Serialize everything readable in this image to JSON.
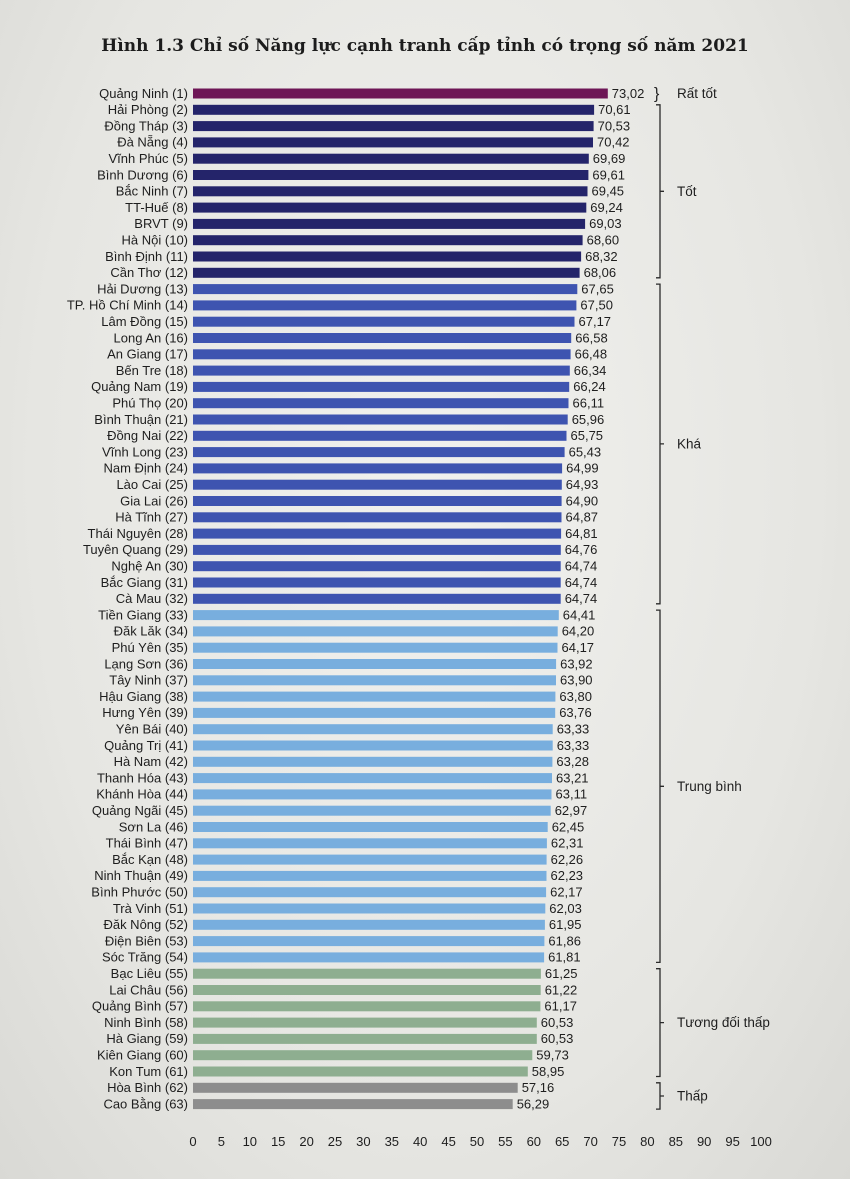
{
  "chart_data": {
    "type": "bar",
    "orientation": "horizontal",
    "title": "Hình 1.3 Chỉ số Năng lực cạnh tranh cấp tỉnh có trọng số năm 2021",
    "xlabel": "",
    "ylabel": "",
    "xlim": [
      0,
      100
    ],
    "x_ticks": [
      "0",
      "5",
      "10",
      "15",
      "20",
      "25",
      "30",
      "35",
      "40",
      "45",
      "50",
      "55",
      "60",
      "65",
      "70",
      "75",
      "80",
      "85",
      "90",
      "95",
      "100"
    ],
    "grid": false,
    "categories": [
      "Quảng Ninh (1)",
      "Hải Phòng (2)",
      "Đồng Tháp (3)",
      "Đà Nẵng (4)",
      "Vĩnh Phúc (5)",
      "Bình Dương (6)",
      "Bắc Ninh (7)",
      "TT-Huế (8)",
      "BRVT (9)",
      "Hà Nội (10)",
      "Bình Định (11)",
      "Cần Thơ (12)",
      "Hải Dương (13)",
      "TP. Hồ Chí Minh (14)",
      "Lâm Đồng (15)",
      "Long An (16)",
      "An Giang (17)",
      "Bến Tre (18)",
      "Quảng Nam (19)",
      "Phú Thọ (20)",
      "Bình Thuận (21)",
      "Đồng Nai (22)",
      "Vĩnh Long (23)",
      "Nam Định (24)",
      "Lào Cai (25)",
      "Gia Lai (26)",
      "Hà Tĩnh (27)",
      "Thái Nguyên (28)",
      "Tuyên Quang (29)",
      "Nghệ An (30)",
      "Bắc Giang (31)",
      "Cà Mau (32)",
      "Tiền Giang (33)",
      "Đăk Lăk (34)",
      "Phú Yên (35)",
      "Lạng Sơn (36)",
      "Tây Ninh (37)",
      "Hậu Giang (38)",
      "Hưng Yên (39)",
      "Yên Bái (40)",
      "Quảng Trị (41)",
      "Hà Nam (42)",
      "Thanh Hóa (43)",
      "Khánh Hòa (44)",
      "Quảng Ngãi (45)",
      "Sơn La (46)",
      "Thái Bình (47)",
      "Bắc Kạn (48)",
      "Ninh Thuận (49)",
      "Bình Phước (50)",
      "Trà Vinh (51)",
      "Đăk Nông (52)",
      "Điện Biên (53)",
      "Sóc Trăng (54)",
      "Bạc Liêu (55)",
      "Lai Châu (56)",
      "Quảng Bình (57)",
      "Ninh Bình (58)",
      "Hà Giang (59)",
      "Kiên Giang (60)",
      "Kon Tum (61)",
      "Hòa Bình (62)",
      "Cao Bằng (63)"
    ],
    "values": [
      73.02,
      70.61,
      70.53,
      70.42,
      69.69,
      69.61,
      69.45,
      69.24,
      69.03,
      68.6,
      68.32,
      68.06,
      67.65,
      67.5,
      67.17,
      66.58,
      66.48,
      66.34,
      66.24,
      66.11,
      65.96,
      65.75,
      65.43,
      64.99,
      64.93,
      64.9,
      64.87,
      64.81,
      64.76,
      64.74,
      64.74,
      64.74,
      64.41,
      64.2,
      64.17,
      63.92,
      63.9,
      63.8,
      63.76,
      63.33,
      63.33,
      63.28,
      63.21,
      63.11,
      62.97,
      62.45,
      62.31,
      62.26,
      62.23,
      62.17,
      62.03,
      61.95,
      61.86,
      61.81,
      61.25,
      61.22,
      61.17,
      60.53,
      60.53,
      59.73,
      58.95,
      57.16,
      56.29
    ],
    "value_labels": [
      "73,02",
      "70,61",
      "70,53",
      "70,42",
      "69,69",
      "69,61",
      "69,45",
      "69,24",
      "69,03",
      "68,60",
      "68,32",
      "68,06",
      "67,65",
      "67,50",
      "67,17",
      "66,58",
      "66,48",
      "66,34",
      "66,24",
      "66,11",
      "65,96",
      "65,75",
      "65,43",
      "64,99",
      "64,93",
      "64,90",
      "64,87",
      "64,81",
      "64,76",
      "64,74",
      "64,74",
      "64,74",
      "64,41",
      "64,20",
      "64,17",
      "63,92",
      "63,90",
      "63,80",
      "63,76",
      "63,33",
      "63,33",
      "63,28",
      "63,21",
      "63,11",
      "62,97",
      "62,45",
      "62,31",
      "62,26",
      "62,23",
      "62,17",
      "62,03",
      "61,95",
      "61,86",
      "61,81",
      "61,25",
      "61,22",
      "61,17",
      "60,53",
      "60,53",
      "59,73",
      "58,95",
      "57,16",
      "56,29"
    ],
    "groups": [
      {
        "name": "Rất tốt",
        "start": 0,
        "end": 0,
        "color": "#6e1656"
      },
      {
        "name": "Tốt",
        "start": 1,
        "end": 11,
        "color": "#24246a"
      },
      {
        "name": "Khá",
        "start": 12,
        "end": 31,
        "color": "#3e54b0"
      },
      {
        "name": "Trung bình",
        "start": 32,
        "end": 53,
        "color": "#78aede"
      },
      {
        "name": "Tương đối thấp",
        "start": 54,
        "end": 60,
        "color": "#8eae90"
      },
      {
        "name": "Thấp",
        "start": 61,
        "end": 62,
        "color": "#8d8d8d"
      }
    ]
  }
}
